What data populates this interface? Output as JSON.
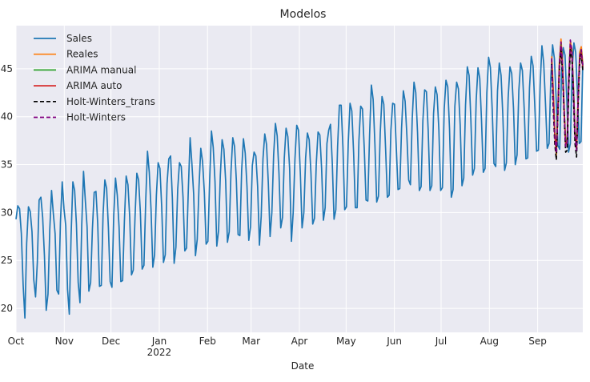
{
  "chart_data": {
    "type": "line",
    "title": "Modelos",
    "xlabel": "Date",
    "ylabel": "",
    "ylim": [
      17.5,
      49.5
    ],
    "y_ticks": [
      20,
      25,
      30,
      35,
      40,
      45
    ],
    "x_range": [
      "2021-10-01",
      "2022-09-30"
    ],
    "x_ticks": [
      {
        "date": "2021-10-01",
        "label": "Oct",
        "sublabel": ""
      },
      {
        "date": "2021-11-01",
        "label": "Nov",
        "sublabel": ""
      },
      {
        "date": "2021-12-01",
        "label": "Dec",
        "sublabel": ""
      },
      {
        "date": "2022-01-01",
        "label": "Jan",
        "sublabel": "2022"
      },
      {
        "date": "2022-02-01",
        "label": "Feb",
        "sublabel": ""
      },
      {
        "date": "2022-03-01",
        "label": "Mar",
        "sublabel": ""
      },
      {
        "date": "2022-04-01",
        "label": "Apr",
        "sublabel": ""
      },
      {
        "date": "2022-05-01",
        "label": "May",
        "sublabel": ""
      },
      {
        "date": "2022-06-01",
        "label": "Jun",
        "sublabel": ""
      },
      {
        "date": "2022-07-01",
        "label": "Jul",
        "sublabel": ""
      },
      {
        "date": "2022-08-01",
        "label": "Aug",
        "sublabel": ""
      },
      {
        "date": "2022-09-01",
        "label": "Sep",
        "sublabel": ""
      }
    ],
    "grid": true,
    "legend_position": "top-left",
    "series": [
      {
        "name": "Sales",
        "color": "#1f77b4",
        "dash": "solid",
        "x_start": "2021-10-01",
        "x_end": "2022-09-30",
        "values": [
          29.3,
          30.7,
          30.4,
          27.8,
          22.5,
          19.0,
          26.8,
          30.6,
          30.1,
          28.0,
          23.0,
          21.2,
          24.8,
          31.3,
          31.6,
          29.5,
          25.5,
          19.8,
          21.5,
          28.2,
          32.3,
          29.9,
          27.8,
          21.9,
          21.5,
          29.0,
          33.2,
          30.4,
          28.6,
          22.0,
          19.4,
          27.6,
          33.2,
          32.3,
          28.8,
          22.7,
          20.6,
          28.7,
          34.3,
          31.3,
          28.5,
          21.8,
          22.7,
          28.3,
          32.1,
          32.2,
          28.8,
          22.3,
          22.4,
          29.8,
          33.4,
          32.5,
          28.4,
          22.8,
          22.2,
          29.7,
          33.6,
          31.8,
          28.5,
          22.8,
          22.9,
          29.1,
          33.8,
          32.9,
          29.5,
          23.5,
          24.0,
          29.6,
          34.1,
          33.4,
          30.0,
          24.1,
          24.5,
          31.2,
          36.4,
          34.2,
          30.3,
          24.3,
          25.6,
          31.8,
          35.2,
          34.6,
          30.6,
          24.8,
          25.6,
          33.0,
          35.6,
          35.9,
          31.5,
          24.7,
          26.4,
          32.4,
          35.2,
          34.8,
          31.6,
          26.0,
          26.3,
          32.5,
          37.8,
          35.1,
          31.9,
          25.5,
          27.2,
          32.7,
          36.7,
          35.3,
          32.1,
          26.7,
          27.0,
          33.4,
          38.5,
          36.8,
          33.2,
          26.5,
          28.1,
          33.9,
          37.6,
          36.6,
          33.3,
          26.9,
          28.0,
          34.3,
          37.8,
          36.9,
          33.4,
          27.7,
          27.6,
          34.4,
          37.7,
          36.2,
          32.7,
          27.1,
          28.5,
          34.9,
          36.3,
          35.9,
          32.7,
          26.6,
          29.6,
          35.6,
          38.2,
          37.1,
          33.1,
          27.5,
          30.0,
          36.0,
          39.3,
          38.0,
          34.1,
          28.4,
          29.5,
          35.7,
          38.8,
          37.9,
          34.6,
          27.0,
          30.0,
          35.6,
          39.1,
          38.6,
          34.2,
          28.4,
          30.0,
          35.7,
          38.3,
          37.6,
          34.1,
          28.8,
          29.4,
          35.1,
          38.4,
          38.1,
          34.6,
          29.2,
          30.5,
          37.2,
          38.6,
          39.2,
          35.2,
          29.3,
          30.3,
          36.9,
          41.2,
          41.2,
          36.8,
          30.3,
          30.6,
          37.3,
          41.4,
          40.6,
          36.3,
          30.5,
          30.5,
          37.5,
          41.1,
          40.8,
          36.7,
          31.3,
          31.2,
          38.1,
          43.3,
          41.8,
          37.1,
          31.1,
          31.7,
          38.3,
          42.1,
          41.3,
          36.7,
          31.6,
          31.8,
          38.6,
          41.4,
          41.3,
          36.9,
          32.4,
          32.5,
          38.8,
          42.7,
          41.6,
          38.0,
          33.4,
          32.9,
          39.8,
          43.6,
          42.5,
          38.3,
          32.3,
          32.7,
          39.6,
          42.8,
          42.6,
          38.5,
          32.3,
          32.8,
          40.3,
          43.1,
          42.3,
          38.6,
          32.3,
          32.6,
          40.8,
          43.8,
          43.1,
          38.7,
          31.6,
          32.4,
          41.1,
          43.6,
          42.9,
          39.1,
          32.8,
          33.6,
          41.2,
          45.2,
          44.3,
          39.7,
          33.9,
          34.6,
          41.7,
          45.1,
          44.0,
          39.6,
          34.2,
          34.6,
          42.5,
          46.2,
          45.1,
          40.8,
          35.1,
          34.8,
          42.7,
          45.6,
          44.3,
          40.1,
          34.4,
          35.2,
          42.0,
          45.2,
          44.5,
          40.9,
          35.0,
          36.0,
          42.7,
          45.6,
          44.8,
          40.9,
          35.6,
          35.7,
          43.0,
          46.3,
          45.3,
          41.1,
          36.4,
          36.5,
          43.3,
          47.4,
          45.6,
          41.4,
          36.7,
          37.2,
          44.0,
          47.5,
          46.1,
          41.9,
          37.0,
          36.6,
          44.5,
          47.2,
          46.4,
          41.8,
          36.3,
          37.2,
          44.9,
          47.7,
          46.7,
          42.4,
          37.2,
          37.4,
          45.6
        ]
      },
      {
        "name": "Reales",
        "color": "#ff7f0e",
        "dash": "solid",
        "x_start": "2022-09-10",
        "x_end": "2022-09-30",
        "values": [
          46.3,
          43.0,
          38.6,
          36.0,
          40.5,
          45.8,
          48.1,
          45.6,
          40.7,
          37.0,
          37.8,
          44.2,
          47.9,
          47.0,
          43.1,
          38.5,
          36.7,
          42.0,
          46.7,
          47.3,
          45.6
        ]
      },
      {
        "name": "ARIMA manual",
        "color": "#2ca02c",
        "dash": "solid",
        "x_start": "2022-09-10",
        "x_end": "2022-09-30",
        "values": [
          46.0,
          42.6,
          38.4,
          36.5,
          40.8,
          45.6,
          47.6,
          45.2,
          40.9,
          37.3,
          37.6,
          43.8,
          47.5,
          46.8,
          42.9,
          38.4,
          36.9,
          41.8,
          46.3,
          47.0,
          45.3
        ]
      },
      {
        "name": "ARIMA auto",
        "color": "#d62728",
        "dash": "solid",
        "x_start": "2022-09-10",
        "x_end": "2022-09-30",
        "values": [
          45.9,
          42.4,
          38.2,
          36.3,
          40.6,
          45.4,
          47.4,
          45.0,
          40.7,
          37.1,
          37.4,
          43.6,
          47.3,
          46.6,
          42.7,
          38.2,
          36.7,
          41.6,
          46.1,
          46.8,
          45.1
        ]
      },
      {
        "name": "Holt-Winters_trans",
        "color": "#000000",
        "dash": "dashed",
        "x_start": "2022-09-10",
        "x_end": "2022-09-30",
        "values": [
          45.5,
          41.0,
          37.2,
          35.5,
          40.2,
          45.0,
          47.0,
          44.6,
          40.2,
          36.3,
          36.5,
          43.2,
          47.0,
          46.2,
          42.2,
          37.2,
          35.8,
          41.2,
          45.8,
          46.5,
          44.8
        ]
      },
      {
        "name": "Holt-Winters",
        "color": "#800080",
        "dash": "dashed",
        "x_start": "2022-09-10",
        "x_end": "2022-09-30",
        "values": [
          46.1,
          42.0,
          37.8,
          36.2,
          40.6,
          45.6,
          47.8,
          45.4,
          40.8,
          36.9,
          37.3,
          43.9,
          48.0,
          46.9,
          42.8,
          38.0,
          36.5,
          42.0,
          46.4,
          47.0,
          45.3
        ]
      }
    ]
  }
}
